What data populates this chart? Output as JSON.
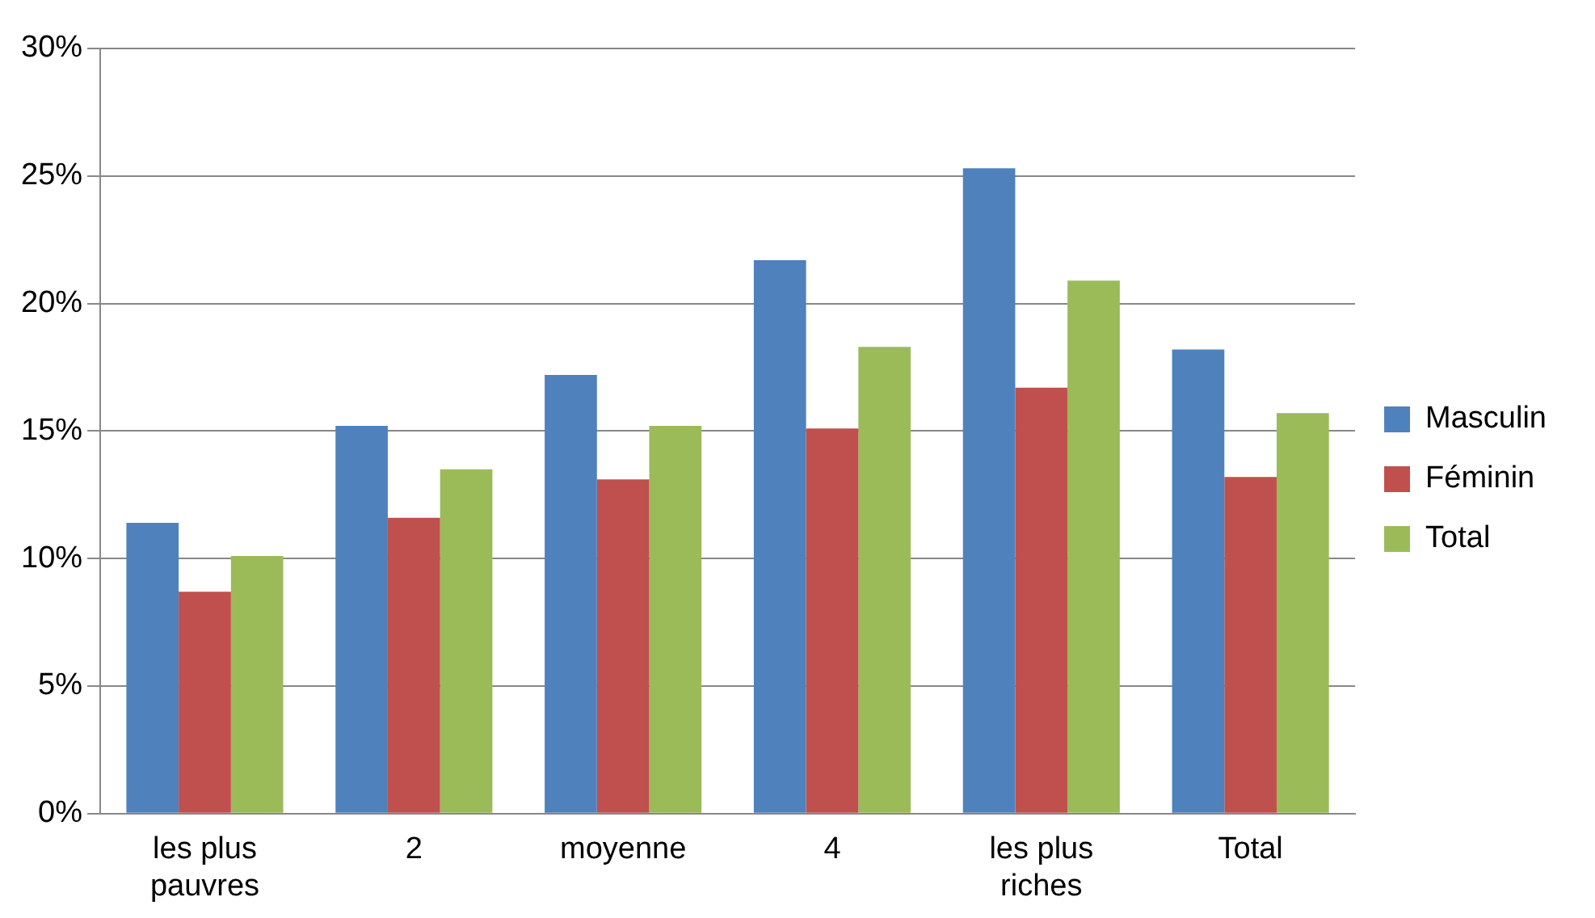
{
  "chart_data": {
    "type": "bar",
    "categories": [
      "les plus pauvres",
      "2",
      "moyenne",
      "4",
      "les plus riches",
      "Total"
    ],
    "series": [
      {
        "name": "Masculin",
        "color": "#4f81bd",
        "values": [
          11.4,
          15.2,
          17.2,
          21.7,
          25.3,
          18.2
        ]
      },
      {
        "name": "Féminin",
        "color": "#c0504d",
        "values": [
          8.7,
          11.6,
          13.1,
          15.1,
          16.7,
          13.2
        ]
      },
      {
        "name": "Total",
        "color": "#9bbb59",
        "values": [
          10.1,
          13.5,
          15.2,
          18.3,
          20.9,
          15.7
        ]
      }
    ],
    "ylim": [
      0,
      30
    ],
    "yticks": [
      {
        "value": 0,
        "label": "0%"
      },
      {
        "value": 5,
        "label": "5%"
      },
      {
        "value": 10,
        "label": "10%"
      },
      {
        "value": 15,
        "label": "15%"
      },
      {
        "value": 20,
        "label": "20%"
      },
      {
        "value": 25,
        "label": "25%"
      },
      {
        "value": 30,
        "label": "30%"
      }
    ],
    "grid": "y",
    "legend": "right"
  }
}
